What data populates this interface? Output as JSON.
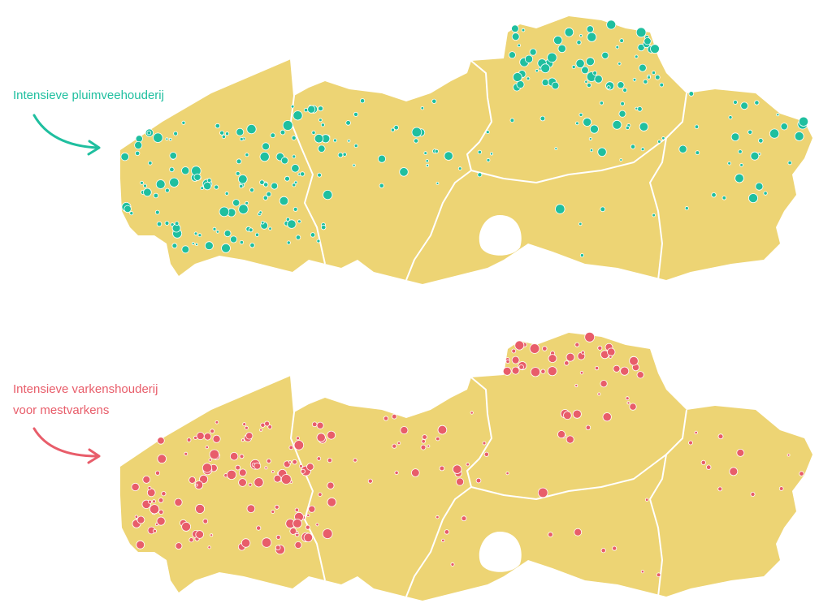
{
  "legend": {
    "poultry": "Intensieve pluimveehouderij",
    "pigs": [
      "Intensieve varkenshouderij",
      "voor mestvarkens"
    ]
  }
}
